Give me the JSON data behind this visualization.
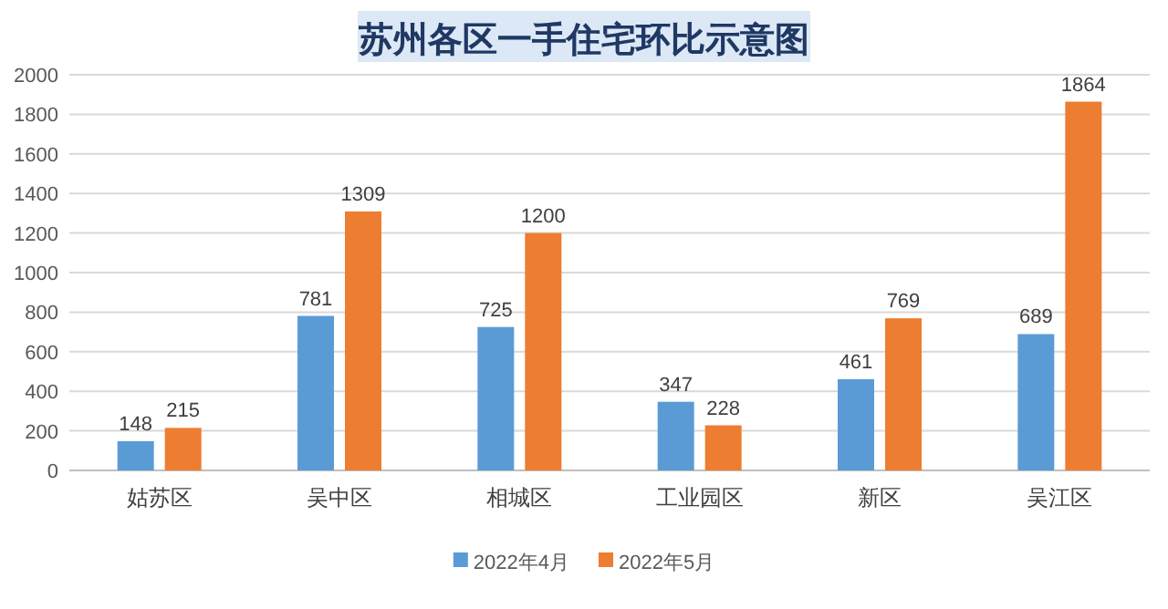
{
  "chart_data": {
    "type": "bar",
    "title": "苏州各区一手住宅环比示意图",
    "categories": [
      "姑苏区",
      "吴中区",
      "相城区",
      "工业园区",
      "新区",
      "吴江区"
    ],
    "series": [
      {
        "name": "2022年4月",
        "color": "#5b9bd5",
        "values": [
          148,
          781,
          725,
          347,
          461,
          689
        ]
      },
      {
        "name": "2022年5月",
        "color": "#ed7d31",
        "values": [
          215,
          1309,
          1200,
          228,
          769,
          1864
        ]
      }
    ],
    "ylim": [
      0,
      2000
    ],
    "yticks": [
      0,
      200,
      400,
      600,
      800,
      1000,
      1200,
      1400,
      1600,
      1800,
      2000
    ],
    "grid": "y",
    "legend": "bottom",
    "data_labels": true
  }
}
